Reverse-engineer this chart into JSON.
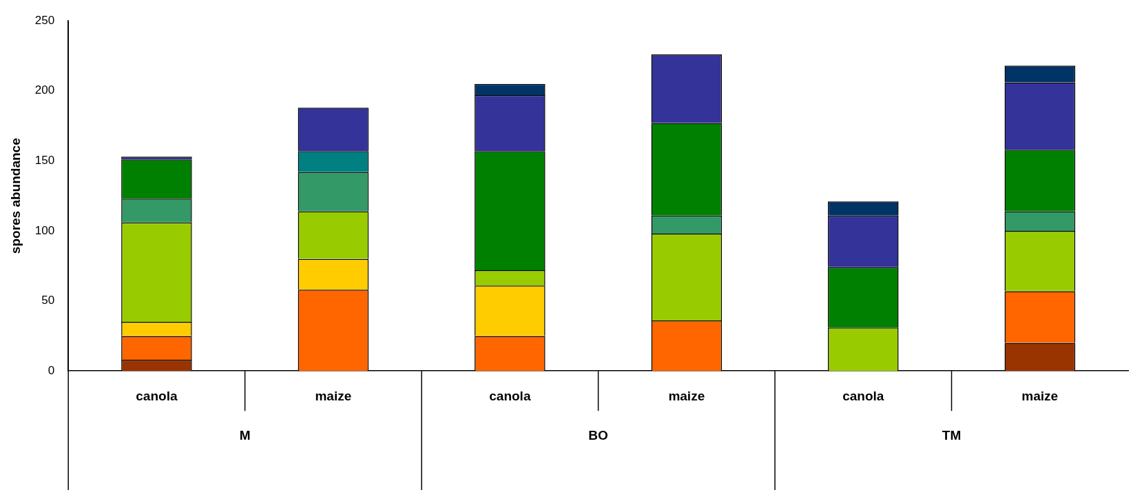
{
  "chart_data": {
    "type": "bar",
    "stacked": true,
    "ylabel": "spores abundance",
    "categories": [
      "canola",
      "maize",
      "canola",
      "maize",
      "canola",
      "maize"
    ],
    "annotations": [
      "M",
      "BO",
      "TM"
    ],
    "ylim": [
      0,
      250
    ],
    "yticks": [
      0,
      50,
      100,
      150,
      200,
      250
    ],
    "grid": false,
    "legend": false,
    "series": [
      {
        "color": "#993300",
        "values": [
          8,
          null,
          null,
          null,
          null,
          20
        ]
      },
      {
        "color": "#ff6600",
        "values": [
          17,
          58,
          25,
          36,
          null,
          37
        ]
      },
      {
        "color": "#ffcc00",
        "values": [
          10,
          22,
          36,
          null,
          null,
          null
        ]
      },
      {
        "color": "#99cc00",
        "values": [
          71,
          34,
          11,
          62,
          31,
          43
        ]
      },
      {
        "color": "#339966",
        "values": [
          17,
          28,
          null,
          13,
          null,
          14
        ]
      },
      {
        "color": "#008000",
        "values": [
          28,
          null,
          85,
          66,
          43,
          44
        ]
      },
      {
        "color": "#008080",
        "values": [
          null,
          15,
          null,
          null,
          null,
          null
        ]
      },
      {
        "color": "#333399",
        "values": [
          2,
          31,
          40,
          49,
          37,
          48
        ]
      },
      {
        "color": "#003366",
        "values": [
          null,
          null,
          8,
          null,
          10,
          12
        ]
      }
    ]
  }
}
